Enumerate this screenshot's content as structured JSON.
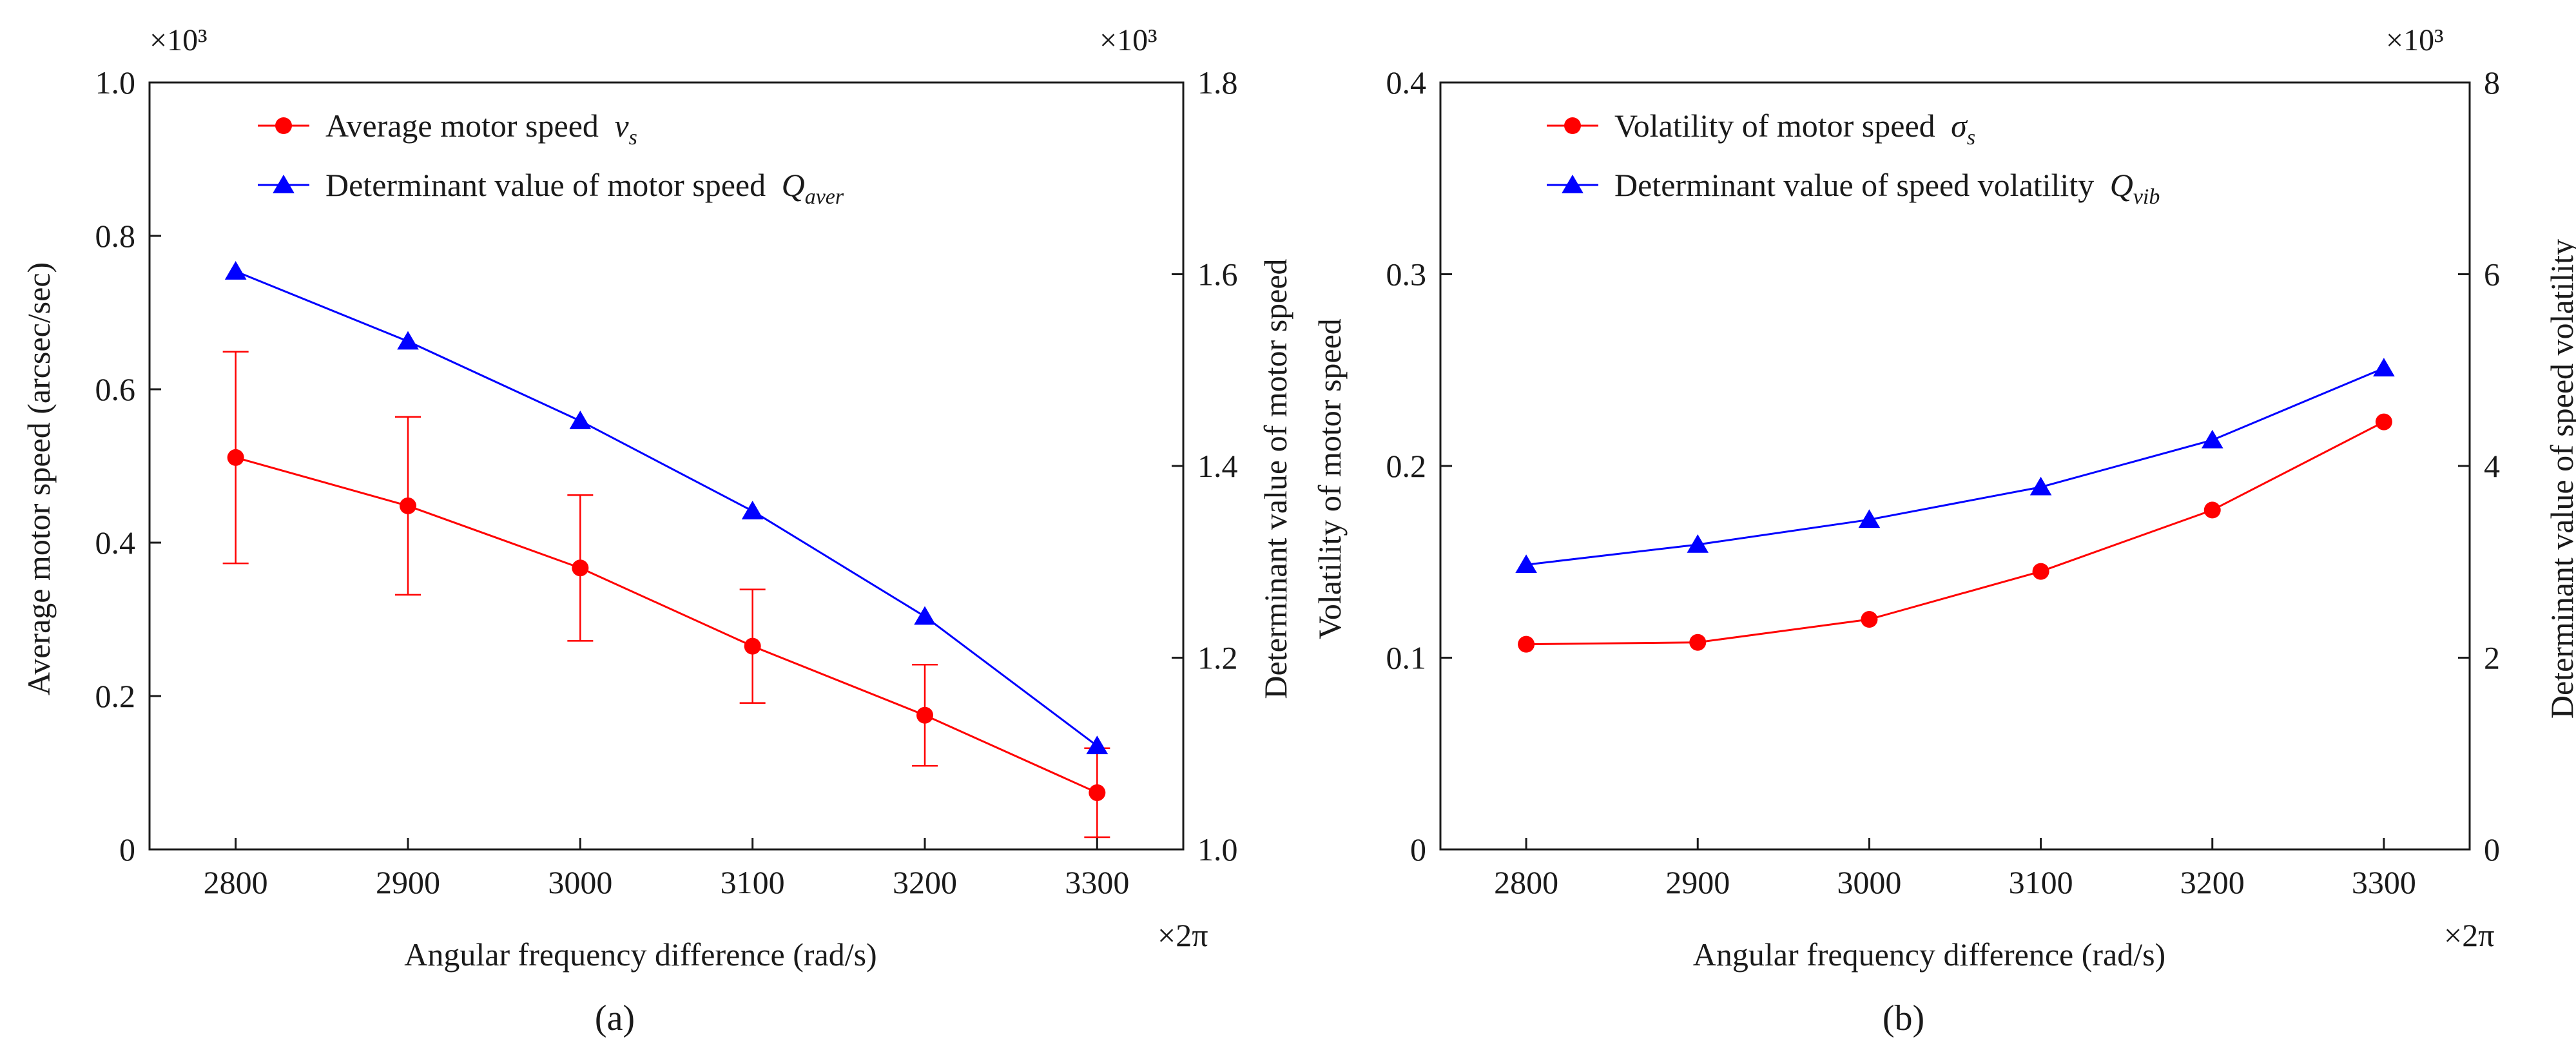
{
  "chart_data": [
    {
      "id": "a",
      "type": "line",
      "caption": "(a)",
      "xlabel": "Angular frequency difference (rad/s)",
      "x_multiplier": "×2π",
      "x": [
        2800,
        2900,
        3000,
        3100,
        3200,
        3300
      ],
      "xticks": [
        "2800",
        "2900",
        "3000",
        "3100",
        "3200",
        "3300"
      ],
      "xlim": [
        2750,
        3350
      ],
      "ylabel_left": "Average motor speed (arcsec/sec)",
      "y_multiplier_left": "×10³",
      "ylim_left": [
        0,
        1.0
      ],
      "yticks_left": [
        0,
        0.2,
        0.4,
        0.6,
        0.8,
        1.0
      ],
      "yticklabels_left": [
        "0",
        "0.2",
        "0.4",
        "0.6",
        "0.8",
        "1.0"
      ],
      "ylabel_right": "Determinant value of motor speed",
      "y_multiplier_right": "×10³",
      "ylim_right": [
        1.0,
        1.8
      ],
      "yticks_right": [
        1.0,
        1.2,
        1.4,
        1.6,
        1.8
      ],
      "yticklabels_right": [
        "1.0",
        "1.2",
        "1.4",
        "1.6",
        "1.8"
      ],
      "series": [
        {
          "name": "Average motor speed",
          "symbol": "v",
          "subscript": "s",
          "axis": "left",
          "marker": "circle",
          "color": "#ff0000",
          "values": [
            0.511,
            0.448,
            0.367,
            0.265,
            0.175,
            0.074
          ],
          "error": [
            0.138,
            0.116,
            0.095,
            0.074,
            0.066,
            0.058
          ]
        },
        {
          "name": "Determinant value of motor speed",
          "symbol": "Q",
          "subscript": "aver",
          "axis": "right",
          "marker": "triangle",
          "color": "#0000ff",
          "values": [
            1.603,
            1.53,
            1.447,
            1.353,
            1.243,
            1.108
          ]
        }
      ]
    },
    {
      "id": "b",
      "type": "line",
      "caption": "(b)",
      "xlabel": "Angular frequency difference (rad/s)",
      "x_multiplier": "×2π",
      "x": [
        2800,
        2900,
        3000,
        3100,
        3200,
        3300
      ],
      "xticks": [
        "2800",
        "2900",
        "3000",
        "3100",
        "3200",
        "3300"
      ],
      "xlim": [
        2750,
        3350
      ],
      "ylabel_left": "Volatility of motor speed",
      "ylim_left": [
        0,
        0.4
      ],
      "yticks_left": [
        0,
        0.1,
        0.2,
        0.3,
        0.4
      ],
      "yticklabels_left": [
        "0",
        "0.1",
        "0.2",
        "0.3",
        "0.4"
      ],
      "ylabel_right": "Determinant value of speed volatility",
      "y_multiplier_right": "×10³",
      "ylim_right": [
        0,
        8
      ],
      "yticks_right": [
        0,
        2,
        4,
        6,
        8
      ],
      "yticklabels_right": [
        "0",
        "2",
        "4",
        "6",
        "8"
      ],
      "series": [
        {
          "name": "Volatility of motor speed",
          "symbol": "σ",
          "subscript": "s",
          "axis": "left",
          "marker": "circle",
          "color": "#ff0000",
          "values": [
            0.107,
            0.108,
            0.12,
            0.145,
            0.177,
            0.223
          ]
        },
        {
          "name": "Determinant value of speed volatility",
          "symbol": "Q",
          "subscript": "vib",
          "axis": "right",
          "marker": "triangle",
          "color": "#0000ff",
          "values": [
            2.97,
            3.18,
            3.44,
            3.78,
            4.27,
            5.02
          ]
        }
      ]
    }
  ]
}
